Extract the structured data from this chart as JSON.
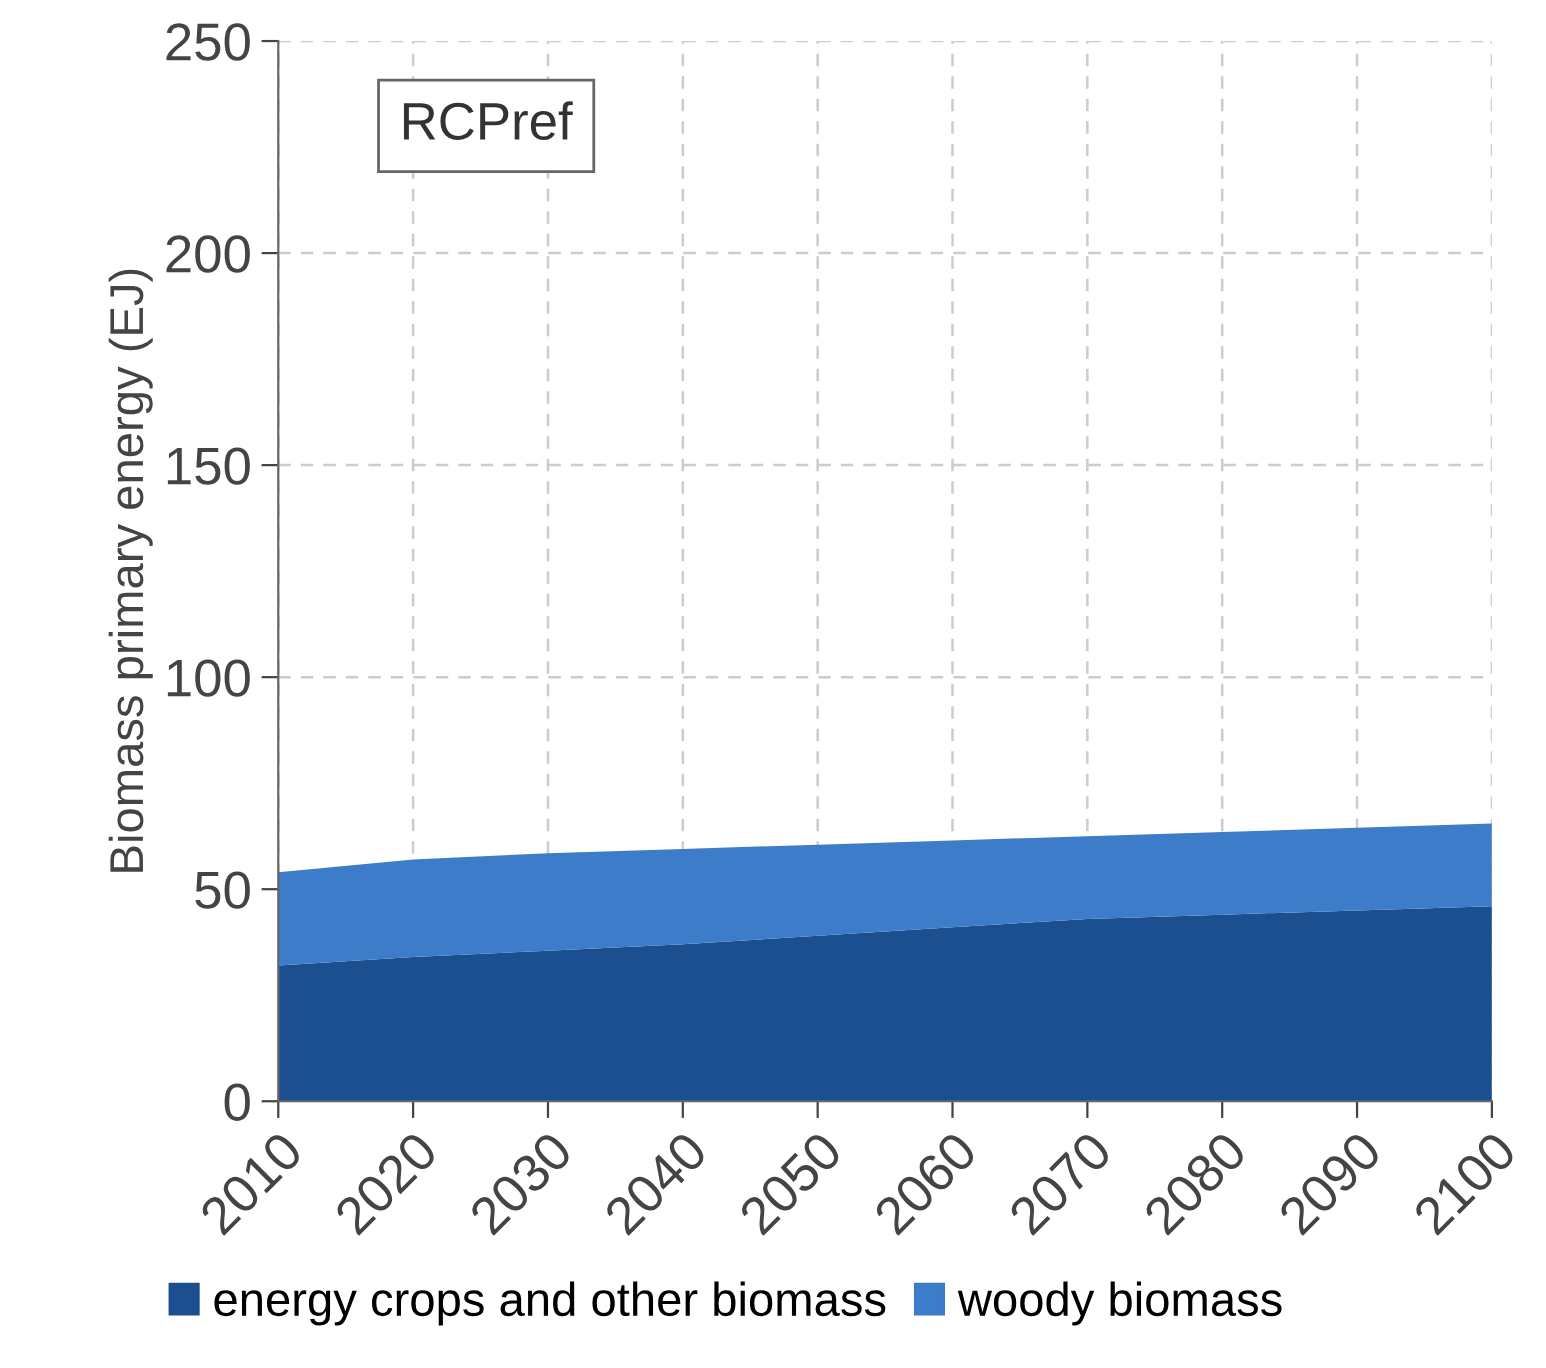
{
  "chart_data": {
    "type": "area",
    "stacked": true,
    "ylabel": "Biomass primary energy (EJ)",
    "x": [
      2010,
      2020,
      2030,
      2040,
      2050,
      2060,
      2070,
      2080,
      2090,
      2100
    ],
    "series": [
      {
        "name": "energy crops and other biomass",
        "color": "#1c4f8f",
        "values": [
          32,
          34,
          35.5,
          37,
          39,
          41,
          43,
          44,
          45,
          46
        ]
      },
      {
        "name": "woody biomass",
        "color": "#3d7cc9",
        "values": [
          22,
          23,
          23,
          22.5,
          21.5,
          20.5,
          19.5,
          19.5,
          19.5,
          19.5
        ]
      }
    ],
    "xlim": [
      2010,
      2100
    ],
    "xticks": [
      2010,
      2020,
      2030,
      2040,
      2050,
      2060,
      2070,
      2080,
      2090,
      2100
    ],
    "ylim": [
      0,
      250
    ],
    "yticks": [
      0,
      50,
      100,
      150,
      200,
      250
    ],
    "annotations": [
      "RCPref"
    ],
    "grid": true,
    "legend": "bottom"
  }
}
